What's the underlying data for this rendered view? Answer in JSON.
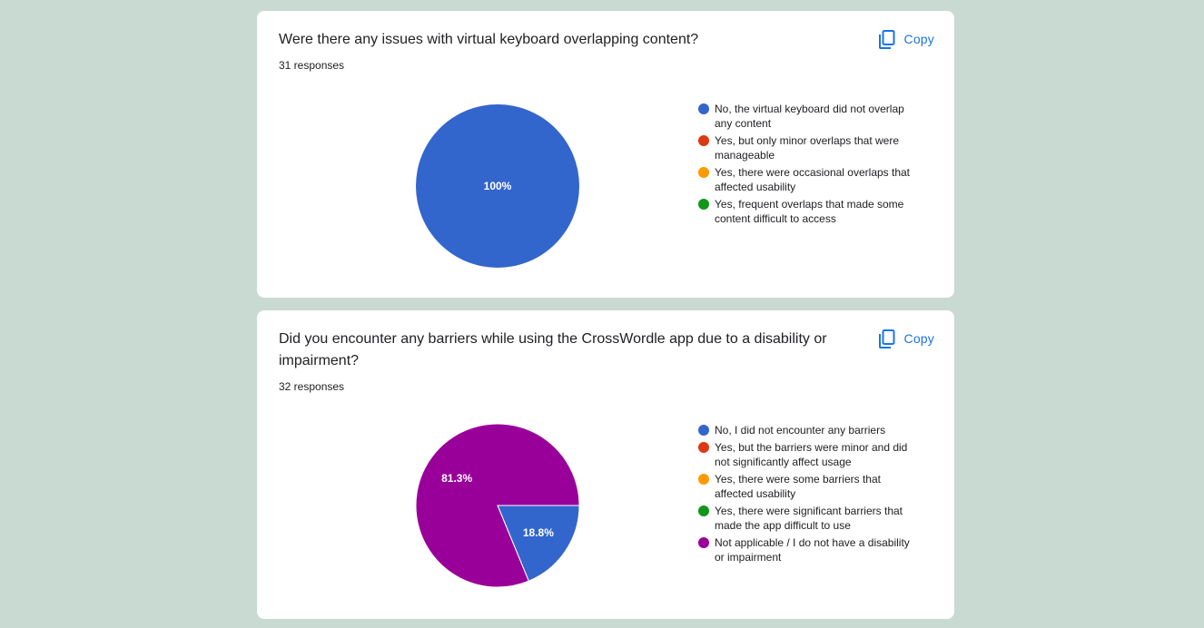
{
  "cards": [
    {
      "question": "Were there any issues with virtual keyboard overlapping content?",
      "responses": "31 responses",
      "copy_label": "Copy"
    },
    {
      "question": "Did you encounter any barriers while using the CrossWordle app due to a disability or impairment?",
      "responses": "32 responses",
      "copy_label": "Copy"
    }
  ],
  "colors": {
    "blue": "#3366cc",
    "red": "#dc3912",
    "orange": "#ff9900",
    "green": "#109618",
    "purple": "#990099",
    "accent": "#1a73e8"
  },
  "chart_data": [
    {
      "type": "pie",
      "title": "Were there any issues with virtual keyboard overlapping content?",
      "categories": [
        "No, the virtual keyboard did not overlap any content",
        "Yes, but only minor overlaps that were manageable",
        "Yes, there were occasional overlaps that affected usability",
        "Yes, frequent overlaps that made some content difficult to access"
      ],
      "values": [
        100,
        0,
        0,
        0
      ],
      "value_labels": [
        "100%",
        "",
        "",
        ""
      ],
      "colors": [
        "#3366cc",
        "#dc3912",
        "#ff9900",
        "#109618"
      ],
      "legend_position": "right"
    },
    {
      "type": "pie",
      "title": "Did you encounter any barriers while using the CrossWordle app due to a disability or impairment?",
      "categories": [
        "No, I did not encounter any barriers",
        "Yes, but the barriers were minor and did not significantly affect usage",
        "Yes, there were some barriers that affected usability",
        "Yes, there were significant barriers that made the app difficult to use",
        "Not applicable / I do not have a disability or impairment"
      ],
      "values": [
        18.8,
        0,
        0,
        0,
        81.3
      ],
      "value_labels": [
        "18.8%",
        "",
        "",
        "",
        "81.3%"
      ],
      "colors": [
        "#3366cc",
        "#dc3912",
        "#ff9900",
        "#109618",
        "#990099"
      ],
      "legend_position": "right"
    }
  ]
}
